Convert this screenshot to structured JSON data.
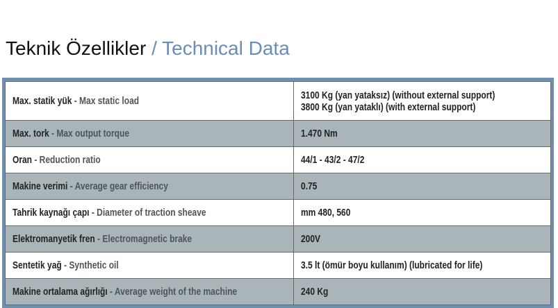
{
  "title": {
    "tr": "Teknik Özellikler",
    "en": "/ Technical Data"
  },
  "table": {
    "rows": [
      {
        "tr": "Max. statik yük",
        "en": "- Max static load",
        "values": [
          "3100 Kg (yan yataksız) (without external support)",
          "3800 Kg (yan yataklı) (with external support)"
        ]
      },
      {
        "tr": "Max. tork",
        "en": "- Max output torque",
        "values": [
          "1.470 Nm"
        ]
      },
      {
        "tr": "Oran",
        "en": "- Reduction ratio",
        "values": [
          "44/1 - 43/2 - 47/2"
        ]
      },
      {
        "tr": "Makine verimi",
        "en": "- Average gear efficiency",
        "values": [
          "0.75"
        ]
      },
      {
        "tr": "Tahrik kaynağı çapı",
        "en": "- Diameter of traction sheave",
        "values": [
          "mm 480, 560"
        ]
      },
      {
        "tr": "Elektromanyetik fren",
        "en": "- Electromagnetic brake",
        "values": [
          "200V"
        ]
      },
      {
        "tr": "Sentetik yağ",
        "en": "- Synthetic oil",
        "values": [
          "3.5 lt (ömür boyu kullanım) (lubricated for life)"
        ]
      },
      {
        "tr": "Makine ortalama ağırlığı",
        "en": "- Average weight of the machine",
        "values": [
          "240 Kg"
        ]
      }
    ]
  }
}
